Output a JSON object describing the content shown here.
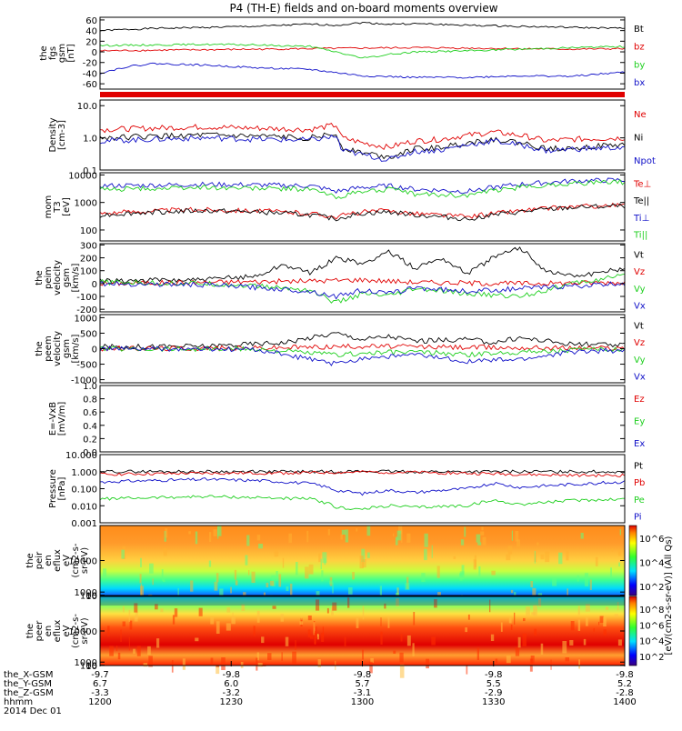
{
  "title": "P4 (TH-E) fields and on-board moments overview",
  "colors": {
    "black": "#000000",
    "red": "#e00000",
    "green": "#1ecf1e",
    "blue": "#1010c8"
  },
  "chart_data": [
    {
      "type": "line",
      "name": "fgs",
      "ylabel": [
        "the",
        "fgs",
        "gsm",
        "[nT]"
      ],
      "ylim": [
        -70,
        65
      ],
      "yticks": [
        "60",
        "40",
        "20",
        "0",
        "-20",
        "-40",
        "-60"
      ],
      "ytick_values": [
        60,
        40,
        20,
        0,
        -20,
        -40,
        -60
      ],
      "legend": [
        {
          "label": "Bt",
          "color": "black"
        },
        {
          "label": "bz",
          "color": "red"
        },
        {
          "label": "by",
          "color": "green"
        },
        {
          "label": "bx",
          "color": "blue"
        }
      ],
      "series": [
        {
          "name": "Bt",
          "color": "black",
          "x": [
            0,
            0.1,
            0.2,
            0.3,
            0.4,
            0.45,
            0.5,
            0.55,
            0.6,
            0.7,
            0.8,
            0.9,
            1.0
          ],
          "y": [
            40,
            44,
            46,
            48,
            52,
            50,
            55,
            52,
            53,
            50,
            48,
            46,
            44
          ]
        },
        {
          "name": "bz",
          "color": "red",
          "x": [
            0,
            0.1,
            0.2,
            0.3,
            0.4,
            0.5,
            0.6,
            0.7,
            0.8,
            0.9,
            1.0
          ],
          "y": [
            2,
            3,
            4,
            5,
            6,
            7,
            8,
            7,
            6,
            5,
            6
          ]
        },
        {
          "name": "by",
          "color": "green",
          "x": [
            0,
            0.1,
            0.2,
            0.3,
            0.4,
            0.45,
            0.5,
            0.55,
            0.6,
            0.7,
            0.8,
            0.9,
            1.0
          ],
          "y": [
            12,
            13,
            14,
            13,
            10,
            0,
            -12,
            -5,
            0,
            2,
            5,
            8,
            10
          ]
        },
        {
          "name": "bx",
          "color": "blue",
          "x": [
            0,
            0.05,
            0.1,
            0.2,
            0.3,
            0.4,
            0.5,
            0.6,
            0.7,
            0.8,
            0.9,
            1.0
          ],
          "y": [
            -40,
            -28,
            -22,
            -25,
            -30,
            -33,
            -45,
            -48,
            -48,
            -45,
            -46,
            -38
          ]
        }
      ]
    },
    {
      "type": "line",
      "name": "density",
      "log": true,
      "ylabel": [
        "Density",
        "[cm-3]"
      ],
      "ylim": [
        0.1,
        15
      ],
      "yticks": [
        "10.0",
        "1.0",
        "0.1"
      ],
      "ytick_values": [
        10,
        1,
        0.1
      ],
      "legend": [
        {
          "label": "Ne",
          "color": "red"
        },
        {
          "label": "Ni",
          "color": "black"
        },
        {
          "label": "Npot",
          "color": "blue"
        }
      ],
      "series": [
        {
          "name": "Ne",
          "color": "red",
          "x": [
            0,
            0.1,
            0.2,
            0.3,
            0.4,
            0.45,
            0.46,
            0.5,
            0.55,
            0.6,
            0.65,
            0.7,
            0.75,
            0.8,
            0.85,
            0.9,
            1.0
          ],
          "y": [
            1.8,
            2.0,
            2.2,
            2.0,
            1.8,
            2.5,
            1.0,
            0.7,
            0.5,
            0.8,
            0.9,
            1.2,
            1.5,
            1.2,
            0.8,
            0.9,
            1.0
          ]
        },
        {
          "name": "Ni",
          "color": "black",
          "x": [
            0,
            0.1,
            0.2,
            0.3,
            0.4,
            0.45,
            0.46,
            0.5,
            0.55,
            0.6,
            0.65,
            0.7,
            0.75,
            0.8,
            0.85,
            0.9,
            1.0
          ],
          "y": [
            1.0,
            1.1,
            1.2,
            1.1,
            1.0,
            1.3,
            0.5,
            0.35,
            0.25,
            0.45,
            0.5,
            0.7,
            0.9,
            0.7,
            0.45,
            0.5,
            0.6
          ]
        },
        {
          "name": "Npot",
          "color": "blue",
          "x": [
            0,
            0.1,
            0.2,
            0.3,
            0.4,
            0.45,
            0.46,
            0.5,
            0.55,
            0.6,
            0.65,
            0.7,
            0.75,
            0.8,
            0.85,
            0.9,
            1.0
          ],
          "y": [
            0.8,
            0.9,
            1.0,
            0.9,
            0.85,
            1.1,
            0.4,
            0.3,
            0.2,
            0.38,
            0.42,
            0.6,
            0.8,
            0.6,
            0.4,
            0.45,
            0.5
          ]
        }
      ]
    },
    {
      "type": "line",
      "name": "temperature",
      "log": true,
      "ylabel": [
        "mom",
        "T3",
        "[eV]"
      ],
      "ylim": [
        40,
        12000
      ],
      "yticks": [
        "10000",
        "1000",
        "100"
      ],
      "ytick_values": [
        10000,
        1000,
        100
      ],
      "legend": [
        {
          "label": "Te⊥",
          "color": "red"
        },
        {
          "label": "Te||",
          "color": "black"
        },
        {
          "label": "Ti⊥",
          "color": "blue"
        },
        {
          "label": "Ti||",
          "color": "green"
        }
      ],
      "series": [
        {
          "name": "Te⊥",
          "color": "red",
          "x": [
            0,
            0.1,
            0.2,
            0.3,
            0.4,
            0.45,
            0.5,
            0.55,
            0.6,
            0.7,
            0.8,
            0.9,
            1.0
          ],
          "y": [
            400,
            500,
            550,
            500,
            400,
            300,
            450,
            500,
            400,
            300,
            500,
            700,
            800
          ]
        },
        {
          "name": "Te||",
          "color": "black",
          "x": [
            0,
            0.1,
            0.2,
            0.3,
            0.4,
            0.45,
            0.5,
            0.55,
            0.6,
            0.7,
            0.8,
            0.9,
            1.0
          ],
          "y": [
            350,
            450,
            500,
            450,
            350,
            250,
            400,
            450,
            350,
            250,
            450,
            650,
            750
          ]
        },
        {
          "name": "Ti⊥",
          "color": "blue",
          "x": [
            0,
            0.1,
            0.2,
            0.3,
            0.4,
            0.45,
            0.5,
            0.55,
            0.6,
            0.7,
            0.8,
            0.9,
            1.0
          ],
          "y": [
            4000,
            4200,
            4500,
            4300,
            4000,
            2500,
            3500,
            4000,
            3000,
            2500,
            4500,
            6000,
            6500
          ]
        },
        {
          "name": "Ti||",
          "color": "green",
          "x": [
            0,
            0.1,
            0.2,
            0.3,
            0.4,
            0.45,
            0.5,
            0.55,
            0.6,
            0.7,
            0.8,
            0.9,
            1.0
          ],
          "y": [
            3000,
            3200,
            3500,
            3300,
            3000,
            1500,
            2500,
            3000,
            2000,
            1800,
            3500,
            5000,
            5500
          ]
        }
      ]
    },
    {
      "type": "line",
      "name": "peim-velocity",
      "ylabel": [
        "the",
        "peim",
        "velocity",
        "gsm",
        "[km/s]"
      ],
      "ylim": [
        -220,
        310
      ],
      "yticks": [
        "300",
        "200",
        "100",
        "0",
        "-100",
        "-200"
      ],
      "ytick_values": [
        300,
        200,
        100,
        0,
        -100,
        -200
      ],
      "legend": [
        {
          "label": "Vt",
          "color": "black"
        },
        {
          "label": "Vz",
          "color": "red"
        },
        {
          "label": "Vy",
          "color": "green"
        },
        {
          "label": "Vx",
          "color": "blue"
        }
      ],
      "series": [
        {
          "name": "Vt",
          "color": "black",
          "x": [
            0,
            0.1,
            0.2,
            0.3,
            0.35,
            0.4,
            0.45,
            0.5,
            0.55,
            0.6,
            0.65,
            0.7,
            0.75,
            0.8,
            0.85,
            0.9,
            0.95,
            1.0
          ],
          "y": [
            20,
            25,
            30,
            60,
            150,
            80,
            200,
            150,
            250,
            120,
            200,
            80,
            200,
            280,
            100,
            60,
            80,
            120
          ]
        },
        {
          "name": "Vz",
          "color": "red",
          "x": [
            0,
            0.2,
            0.4,
            0.5,
            0.6,
            0.8,
            1.0
          ],
          "y": [
            0,
            10,
            20,
            30,
            10,
            0,
            10
          ]
        },
        {
          "name": "Vy",
          "color": "green",
          "x": [
            0,
            0.2,
            0.3,
            0.4,
            0.45,
            0.5,
            0.55,
            0.6,
            0.7,
            0.8,
            0.9,
            1.0
          ],
          "y": [
            10,
            0,
            -20,
            -50,
            -150,
            -80,
            -100,
            -40,
            -80,
            -100,
            0,
            60
          ]
        },
        {
          "name": "Vx",
          "color": "blue",
          "x": [
            0,
            0.2,
            0.3,
            0.4,
            0.45,
            0.5,
            0.55,
            0.6,
            0.7,
            0.8,
            0.9,
            1.0
          ],
          "y": [
            0,
            -10,
            -30,
            -60,
            -100,
            -50,
            -80,
            -30,
            -60,
            -40,
            -20,
            0
          ]
        }
      ]
    },
    {
      "type": "line",
      "name": "peem-velocity",
      "ylabel": [
        "the",
        "peem",
        "velocity",
        "gsm",
        "[km/s]"
      ],
      "ylim": [
        -1100,
        1100
      ],
      "yticks": [
        "1000",
        "500",
        "0",
        "-500",
        "-1000"
      ],
      "ytick_values": [
        1000,
        500,
        0,
        -500,
        -1000
      ],
      "legend": [
        {
          "label": "Vt",
          "color": "black"
        },
        {
          "label": "Vz",
          "color": "red"
        },
        {
          "label": "Vy",
          "color": "green"
        },
        {
          "label": "Vx",
          "color": "blue"
        }
      ],
      "series": [
        {
          "name": "Vt",
          "color": "black",
          "x": [
            0,
            0.2,
            0.35,
            0.45,
            0.5,
            0.55,
            0.6,
            0.7,
            0.75,
            0.8,
            0.9,
            1.0
          ],
          "y": [
            60,
            80,
            200,
            500,
            300,
            400,
            250,
            300,
            200,
            350,
            150,
            100
          ]
        },
        {
          "name": "Vz",
          "color": "red",
          "x": [
            0,
            0.3,
            0.5,
            0.7,
            1.0
          ],
          "y": [
            0,
            20,
            80,
            40,
            20
          ]
        },
        {
          "name": "Vy",
          "color": "green",
          "x": [
            0,
            0.3,
            0.45,
            0.5,
            0.6,
            0.7,
            0.8,
            1.0
          ],
          "y": [
            0,
            -20,
            -200,
            -150,
            -100,
            -200,
            -100,
            0
          ]
        },
        {
          "name": "Vx",
          "color": "blue",
          "x": [
            0,
            0.3,
            0.45,
            0.5,
            0.6,
            0.7,
            0.8,
            0.9,
            1.0
          ],
          "y": [
            0,
            -30,
            -500,
            -300,
            -200,
            -400,
            -350,
            -100,
            -50
          ]
        }
      ]
    },
    {
      "type": "line",
      "name": "e-field",
      "ylabel": [
        "E=-VxB",
        "[mV/m]"
      ],
      "ylim": [
        0,
        1.0
      ],
      "yticks": [
        "1.0",
        "0.8",
        "0.6",
        "0.4",
        "0.2",
        "0.0"
      ],
      "ytick_values": [
        1.0,
        0.8,
        0.6,
        0.4,
        0.2,
        0.0
      ],
      "legend": [
        {
          "label": "Ez",
          "color": "red"
        },
        {
          "label": "Ey",
          "color": "green"
        },
        {
          "label": "Ex",
          "color": "blue"
        }
      ],
      "series": []
    },
    {
      "type": "line",
      "name": "pressure",
      "log": true,
      "ylabel": [
        "Pressure",
        "[nPa]"
      ],
      "ylim": [
        0.001,
        10
      ],
      "yticks": [
        "10.000",
        "1.000",
        "0.100",
        "0.010",
        "0.001"
      ],
      "ytick_values": [
        10,
        1,
        0.1,
        0.01,
        0.001
      ],
      "legend": [
        {
          "label": "Pt",
          "color": "black"
        },
        {
          "label": "Pb",
          "color": "red"
        },
        {
          "label": "Pe",
          "color": "green"
        },
        {
          "label": "Pi",
          "color": "blue"
        }
      ],
      "series": [
        {
          "name": "Pt",
          "color": "black",
          "x": [
            0,
            0.2,
            0.4,
            0.5,
            0.6,
            0.8,
            1.0
          ],
          "y": [
            1.0,
            1.0,
            1.0,
            1.05,
            1.0,
            1.0,
            1.0
          ]
        },
        {
          "name": "Pb",
          "color": "red",
          "x": [
            0,
            0.2,
            0.4,
            0.45,
            0.5,
            0.6,
            0.7,
            0.8,
            0.9,
            1.0
          ],
          "y": [
            0.7,
            0.8,
            0.85,
            0.9,
            0.95,
            0.9,
            0.8,
            0.7,
            0.6,
            0.6
          ]
        },
        {
          "name": "Pe",
          "color": "green",
          "x": [
            0,
            0.1,
            0.2,
            0.3,
            0.4,
            0.45,
            0.5,
            0.55,
            0.6,
            0.7,
            0.75,
            0.8,
            0.9,
            1.0
          ],
          "y": [
            0.025,
            0.03,
            0.035,
            0.03,
            0.025,
            0.008,
            0.006,
            0.01,
            0.008,
            0.01,
            0.02,
            0.012,
            0.02,
            0.025
          ]
        },
        {
          "name": "Pi",
          "color": "blue",
          "x": [
            0,
            0.1,
            0.2,
            0.3,
            0.4,
            0.45,
            0.5,
            0.55,
            0.6,
            0.7,
            0.75,
            0.8,
            0.9,
            1.0
          ],
          "y": [
            0.25,
            0.3,
            0.35,
            0.3,
            0.2,
            0.08,
            0.05,
            0.08,
            0.06,
            0.1,
            0.2,
            0.12,
            0.18,
            0.25
          ]
        }
      ]
    },
    {
      "type": "heatmap",
      "name": "peir-en-eflux",
      "ylabel": [
        "the",
        "peir",
        "en",
        "eflux",
        "eV",
        "(cm2-s-",
        "sr-eV)"
      ],
      "ylim": [
        6,
        20000
      ],
      "yticks": [
        "10000",
        "1000",
        "100",
        "10"
      ],
      "ytick_values": [
        10000,
        1000,
        100,
        10
      ],
      "colorbar": {
        "label": "[eV/(cm2-s-sr-eV)] (All Qs)",
        "ticks": [
          "10^6",
          "10^4",
          "10^2"
        ]
      }
    },
    {
      "type": "heatmap",
      "name": "peer-en-eflux",
      "ylabel": [
        "the",
        "peer",
        "en",
        "eflux",
        "eV",
        "(cm2-s-",
        "sr-eV)"
      ],
      "ylim": [
        6,
        20000
      ],
      "yticks": [
        "10000",
        "1000",
        "100",
        "10"
      ],
      "ytick_values": [
        10000,
        1000,
        100,
        10
      ],
      "colorbar": {
        "label": "[eV/(cm2-s-sr-eV)] (All Qs)",
        "ticks": [
          "10^8",
          "10^6",
          "10^4",
          "10^2"
        ]
      }
    }
  ],
  "xaxis": {
    "row_labels": [
      "the_X-GSM",
      "the_Y-GSM",
      "the_Z-GSM",
      "hhmm",
      "2014 Dec 01"
    ],
    "ticks": [
      {
        "x": 0.0,
        "values": [
          "-9.7",
          "6.7",
          "-3.3",
          "1200"
        ]
      },
      {
        "x": 0.25,
        "values": [
          "-9.8",
          "6.0",
          "-3.2",
          "1230"
        ]
      },
      {
        "x": 0.5,
        "values": [
          "-9.8",
          "5.7",
          "-3.1",
          "1300"
        ]
      },
      {
        "x": 0.75,
        "values": [
          "-9.8",
          "5.5",
          "-2.9",
          "1330"
        ]
      },
      {
        "x": 1.0,
        "values": [
          "-9.8",
          "5.2",
          "-2.8",
          "1400"
        ]
      }
    ]
  }
}
